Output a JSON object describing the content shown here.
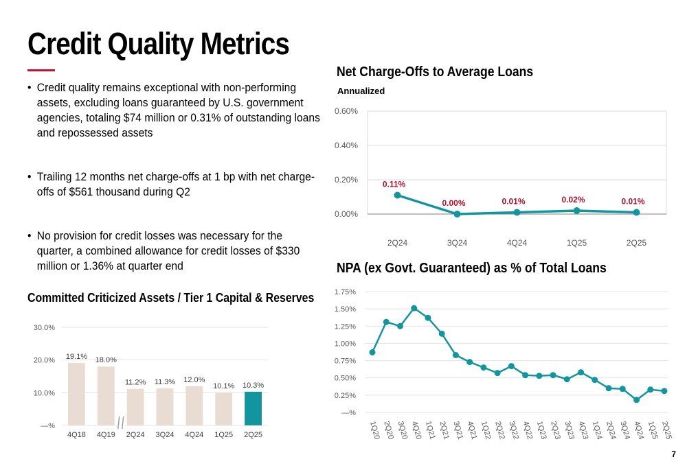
{
  "page": {
    "title": "Credit Quality Metrics",
    "page_number": "7",
    "accent_color": "#c8102e",
    "bullets": [
      "Credit quality remains exceptional with non-performing assets, excluding loans guaranteed by U.S. government agencies, totaling $74 million or 0.31% of outstanding loans and repossessed assets",
      "Trailing 12 months net charge-offs at 1 bp with net charge-offs of $561 thousand during Q2",
      "No provision for credit losses was necessary for the quarter, a combined allowance for credit losses of $330 million or 1.36% at quarter end"
    ]
  },
  "chart_data": [
    {
      "id": "nco",
      "type": "line",
      "title": "Net Charge-Offs to Average Loans",
      "subtitle": "Annualized",
      "categories": [
        "2Q24",
        "3Q24",
        "4Q24",
        "1Q25",
        "2Q25"
      ],
      "values": [
        0.11,
        0.0,
        0.01,
        0.02,
        0.01
      ],
      "data_labels": [
        "0.11%",
        "0.00%",
        "0.01%",
        "0.02%",
        "0.01%"
      ],
      "y_ticks": [
        "0.00%",
        "0.20%",
        "0.40%",
        "0.60%"
      ],
      "ylim": [
        0,
        0.6
      ],
      "grid": true,
      "line_color": "#14959e",
      "label_color": "#b0102e"
    },
    {
      "id": "npa",
      "type": "line",
      "title": "NPA (ex Govt. Guaranteed) as % of Total Loans",
      "categories": [
        "1Q20",
        "2Q20",
        "3Q20",
        "4Q20",
        "1Q21",
        "2Q21",
        "3Q21",
        "4Q21",
        "1Q22",
        "2Q22",
        "3Q22",
        "4Q22",
        "1Q23",
        "2Q23",
        "3Q23",
        "4Q23",
        "1Q24",
        "2Q24",
        "3Q24",
        "4Q24",
        "1Q25",
        "2Q25"
      ],
      "values": [
        0.87,
        1.31,
        1.25,
        1.51,
        1.37,
        1.14,
        0.83,
        0.73,
        0.65,
        0.57,
        0.67,
        0.54,
        0.53,
        0.54,
        0.48,
        0.58,
        0.47,
        0.35,
        0.34,
        0.18,
        0.33,
        0.31
      ],
      "y_ticks": [
        "—%",
        "0.25%",
        "0.50%",
        "0.75%",
        "1.00%",
        "1.25%",
        "1.50%",
        "1.75%"
      ],
      "ylim": [
        0,
        1.75
      ],
      "grid": true,
      "line_color": "#14959e"
    },
    {
      "id": "criticized",
      "type": "bar",
      "title": "Committed Criticized Assets / Tier 1 Capital & Reserves",
      "categories": [
        "4Q18",
        "4Q19",
        "2Q24",
        "3Q24",
        "4Q24",
        "1Q25",
        "2Q25"
      ],
      "values": [
        19.1,
        18.0,
        11.2,
        11.3,
        12.0,
        10.1,
        10.3
      ],
      "data_labels": [
        "19.1%",
        "18.0%",
        "11.2%",
        "11.3%",
        "12.0%",
        "10.1%",
        "10.3%"
      ],
      "y_ticks": [
        "—%",
        "10.0%",
        "20.0%",
        "30.0%"
      ],
      "ylim": [
        0,
        30
      ],
      "grid": true,
      "bar_color": "#e9ddd3",
      "highlight_color": "#14959e",
      "highlight_index": 6,
      "axis_break_after_index": 1
    }
  ]
}
